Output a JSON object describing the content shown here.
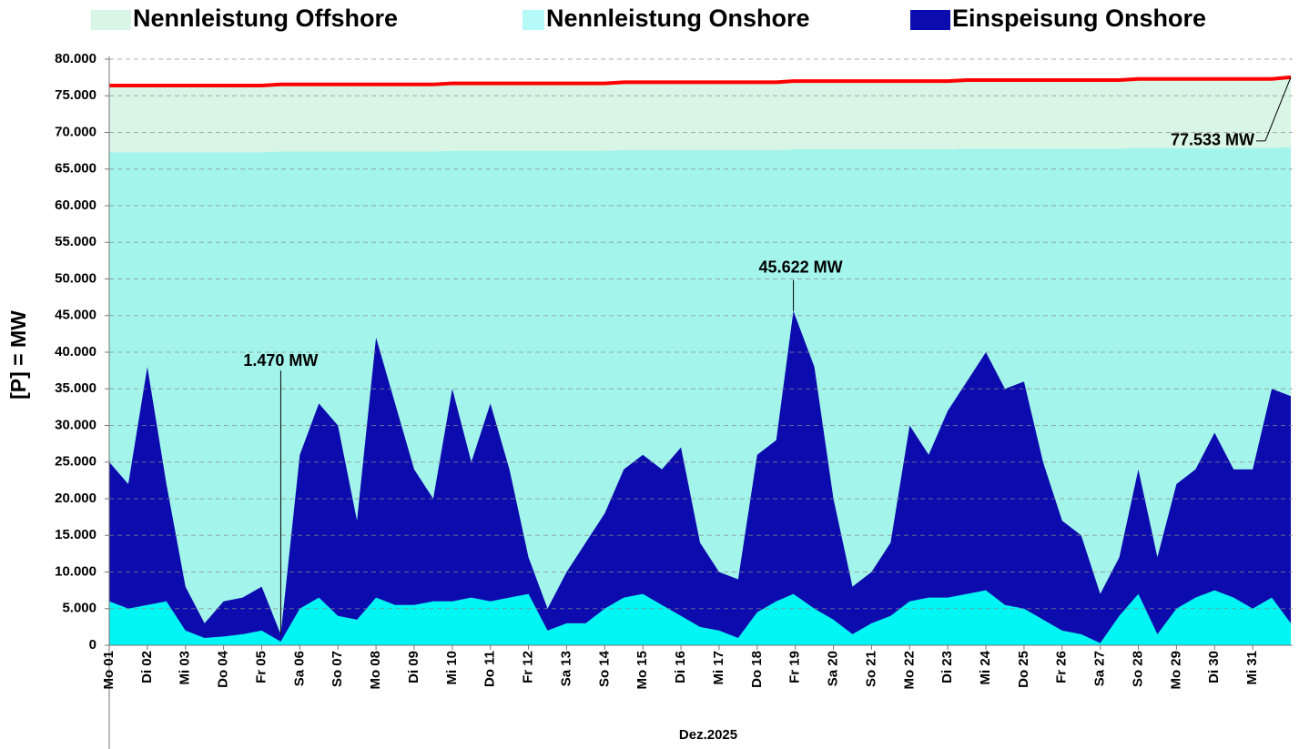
{
  "chart_data": {
    "type": "area",
    "ylabel": "[P] = MW",
    "xlabel": "Dez.2025",
    "x": [
      1,
      1.5,
      2,
      2.5,
      3,
      3.5,
      4,
      4.5,
      5,
      5.5,
      6,
      6.5,
      7,
      7.5,
      8,
      8.5,
      9,
      9.5,
      10,
      10.5,
      11,
      11.5,
      12,
      12.5,
      13,
      13.5,
      14,
      14.5,
      15,
      15.5,
      16,
      16.5,
      17,
      17.5,
      18,
      18.5,
      18.95,
      19.5,
      20,
      20.5,
      21,
      21.5,
      22,
      22.5,
      23,
      23.5,
      24,
      24.5,
      25,
      25.5,
      26,
      26.5,
      27,
      27.5,
      28,
      28.5,
      29,
      29.5,
      30,
      30.5,
      31,
      31.5,
      32
    ],
    "xlim": [
      1,
      32
    ],
    "xticks": [
      {
        "value": 1,
        "label": "Mo 01"
      },
      {
        "value": 2,
        "label": "Di 02"
      },
      {
        "value": 3,
        "label": "Mi 03"
      },
      {
        "value": 4,
        "label": "Do 04"
      },
      {
        "value": 5,
        "label": "Fr 05"
      },
      {
        "value": 6,
        "label": "Sa 06"
      },
      {
        "value": 7,
        "label": "So 07"
      },
      {
        "value": 8,
        "label": "Mo 08"
      },
      {
        "value": 9,
        "label": "Di 09"
      },
      {
        "value": 10,
        "label": "Mi 10"
      },
      {
        "value": 11,
        "label": "Do 11"
      },
      {
        "value": 12,
        "label": "Fr 12"
      },
      {
        "value": 13,
        "label": "Sa 13"
      },
      {
        "value": 14,
        "label": "So 14"
      },
      {
        "value": 15,
        "label": "Mo 15"
      },
      {
        "value": 16,
        "label": "Di 16"
      },
      {
        "value": 17,
        "label": "Mi 17"
      },
      {
        "value": 18,
        "label": "Do 18"
      },
      {
        "value": 19,
        "label": "Fr 19"
      },
      {
        "value": 20,
        "label": "Sa 20"
      },
      {
        "value": 21,
        "label": "So 21"
      },
      {
        "value": 22,
        "label": "Mo 22"
      },
      {
        "value": 23,
        "label": "Di 23"
      },
      {
        "value": 24,
        "label": "Mi 24"
      },
      {
        "value": 25,
        "label": "Do 25"
      },
      {
        "value": 26,
        "label": "Fr 26"
      },
      {
        "value": 27,
        "label": "Sa 27"
      },
      {
        "value": 28,
        "label": "So 28"
      },
      {
        "value": 29,
        "label": "Mo 29"
      },
      {
        "value": 30,
        "label": "Di 30"
      },
      {
        "value": 31,
        "label": "Mi 31"
      }
    ],
    "ylim": [
      0,
      80000
    ],
    "yticks": [
      0,
      {
        "value": 5000,
        "label": "5.000"
      },
      {
        "value": 10000,
        "label": "10.000"
      },
      {
        "value": 15000,
        "label": "15.000"
      },
      {
        "value": 20000,
        "label": "20.000"
      },
      {
        "value": 25000,
        "label": "25.000"
      },
      {
        "value": 30000,
        "label": "30.000"
      },
      {
        "value": 35000,
        "label": "35.000"
      },
      {
        "value": 40000,
        "label": "40.000"
      },
      {
        "value": 45000,
        "label": "45.000"
      },
      {
        "value": 50000,
        "label": "50.000"
      },
      {
        "value": 55000,
        "label": "55.000"
      },
      {
        "value": 60000,
        "label": "60.000"
      },
      {
        "value": 65000,
        "label": "65.000"
      },
      {
        "value": 70000,
        "label": "70.000"
      },
      {
        "value": 75000,
        "label": "75.000"
      },
      {
        "value": 80000,
        "label": "80.000"
      }
    ],
    "grid": true,
    "series": [
      {
        "name": "Nennleistung Offshore",
        "color": "#d9f5e6",
        "legend_color": "#d9f5e6",
        "line_color": "#ff0000",
        "stack_on": 1,
        "values": [
          9100,
          9100,
          9100,
          9100,
          9100,
          9100,
          9100,
          9100,
          9100,
          9150,
          9150,
          9150,
          9150,
          9150,
          9150,
          9150,
          9150,
          9150,
          9200,
          9200,
          9200,
          9200,
          9200,
          9200,
          9200,
          9200,
          9200,
          9250,
          9250,
          9250,
          9250,
          9250,
          9250,
          9250,
          9250,
          9250,
          9300,
          9300,
          9300,
          9300,
          9300,
          9300,
          9300,
          9300,
          9300,
          9350,
          9350,
          9350,
          9350,
          9350,
          9350,
          9350,
          9350,
          9350,
          9400,
          9400,
          9400,
          9400,
          9400,
          9400,
          9400,
          9400,
          9533
        ]
      },
      {
        "name": "Nennleistung Onshore",
        "color": "#a3f4ea",
        "legend_color": "#b5f8f8",
        "values": [
          67300,
          67300,
          67300,
          67300,
          67300,
          67300,
          67300,
          67300,
          67300,
          67400,
          67400,
          67400,
          67400,
          67400,
          67400,
          67400,
          67400,
          67400,
          67500,
          67500,
          67500,
          67500,
          67500,
          67500,
          67500,
          67500,
          67500,
          67600,
          67600,
          67600,
          67600,
          67600,
          67600,
          67600,
          67600,
          67600,
          67700,
          67700,
          67700,
          67700,
          67700,
          67700,
          67700,
          67700,
          67700,
          67800,
          67800,
          67800,
          67800,
          67800,
          67800,
          67800,
          67800,
          67800,
          67900,
          67900,
          67900,
          67900,
          67900,
          67900,
          67900,
          67900,
          68000
        ]
      },
      {
        "name": "Einspeisung Onshore",
        "color": "#0c0cae",
        "legend_color": "#0c0cae",
        "stack_on": 3,
        "values": [
          19000,
          17000,
          32500,
          16000,
          6000,
          2000,
          4800,
          5000,
          6000,
          970,
          21000,
          26500,
          26000,
          13500,
          35500,
          27500,
          18500,
          14000,
          29000,
          18500,
          27000,
          17500,
          5000,
          3000,
          7000,
          11000,
          13000,
          17500,
          19000,
          18500,
          23000,
          11500,
          8000,
          8000,
          21500,
          22000,
          38622,
          33000,
          16500,
          6500,
          7000,
          10000,
          24000,
          19500,
          25500,
          29000,
          32500,
          29500,
          31000,
          21500,
          15000,
          13500,
          6700,
          8000,
          17000,
          10500,
          17000,
          17500,
          21500,
          17500,
          19000,
          28500,
          31000
        ]
      },
      {
        "color": "#00f5f5",
        "values": [
          6000,
          5000,
          5500,
          6000,
          2000,
          1000,
          1200,
          1500,
          2000,
          500,
          5000,
          6500,
          4000,
          3500,
          6500,
          5500,
          5500,
          6000,
          6000,
          6500,
          6000,
          6500,
          7000,
          2000,
          3000,
          3000,
          5000,
          6500,
          7000,
          5500,
          4000,
          2500,
          2000,
          1000,
          4500,
          6000,
          7000,
          5000,
          3500,
          1500,
          3000,
          4000,
          6000,
          6500,
          6500,
          7000,
          7500,
          5500,
          5000,
          3500,
          2000,
          1500,
          300,
          4000,
          7000,
          1500,
          5000,
          6500,
          7500,
          6500,
          5000,
          6500,
          3000
        ]
      }
    ],
    "annotations": [
      {
        "text": "1.470 MW",
        "x": 5.5,
        "y": 1470
      },
      {
        "text": "45.622 MW",
        "x": 18.95,
        "y": 45622
      },
      {
        "text": "77.533 MW",
        "x": 32,
        "y": 77533
      }
    ]
  }
}
